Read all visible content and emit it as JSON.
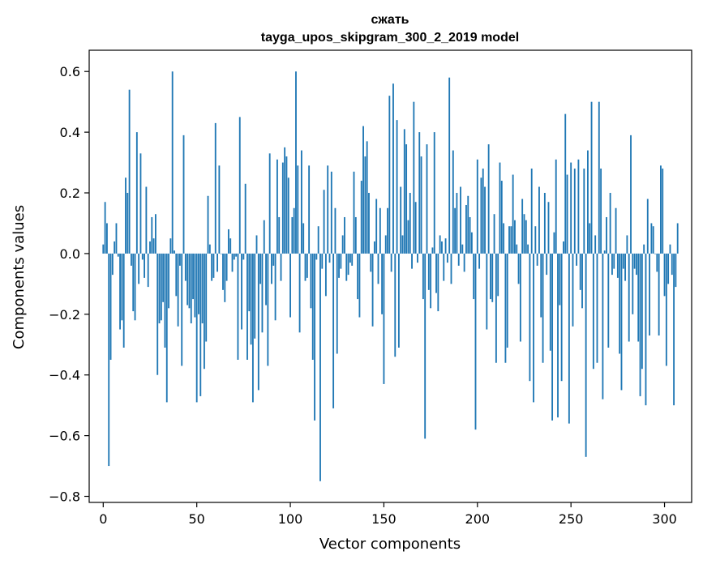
{
  "chart_data": {
    "type": "bar",
    "title": "сжать",
    "subtitle": "tayga_upos_skipgram_300_2_2019 model",
    "xlabel": "Vector components",
    "ylabel": "Components values",
    "xlim": [
      -7.5,
      314.5
    ],
    "ylim": [
      -0.82,
      0.67
    ],
    "xticks": [
      0,
      50,
      100,
      150,
      200,
      250,
      300
    ],
    "yticks": [
      -0.8,
      -0.6,
      -0.4,
      -0.2,
      0.0,
      0.2,
      0.4,
      0.6
    ],
    "ytick_labels": [
      "−0.8",
      "−0.6",
      "−0.4",
      "−0.2",
      "0.0",
      "0.2",
      "0.4",
      "0.6"
    ],
    "bar_color": "#1f77b4",
    "grid": false,
    "x_start": 0,
    "values": [
      0.03,
      0.17,
      0.1,
      -0.7,
      -0.35,
      -0.07,
      0.04,
      0.1,
      -0.01,
      -0.25,
      -0.22,
      -0.31,
      0.25,
      0.2,
      0.54,
      -0.04,
      -0.19,
      -0.22,
      0.4,
      -0.1,
      0.33,
      -0.02,
      -0.08,
      0.22,
      -0.11,
      0.04,
      0.12,
      0.05,
      0.13,
      -0.4,
      -0.23,
      -0.22,
      -0.16,
      -0.31,
      -0.49,
      -0.18,
      0.05,
      0.6,
      0.01,
      -0.14,
      -0.24,
      -0.04,
      -0.37,
      0.39,
      -0.09,
      -0.17,
      -0.18,
      -0.23,
      -0.15,
      -0.21,
      -0.49,
      -0.2,
      -0.47,
      -0.23,
      -0.38,
      -0.29,
      0.19,
      0.03,
      -0.09,
      -0.08,
      0.43,
      -0.06,
      0.29,
      0.0,
      -0.12,
      -0.16,
      -0.09,
      0.08,
      0.05,
      -0.06,
      -0.02,
      -0.01,
      -0.35,
      0.45,
      -0.25,
      -0.02,
      0.23,
      -0.35,
      -0.19,
      -0.3,
      -0.49,
      -0.28,
      0.06,
      -0.45,
      -0.1,
      -0.26,
      0.11,
      -0.17,
      -0.37,
      0.33,
      -0.1,
      -0.04,
      -0.22,
      0.31,
      0.12,
      -0.09,
      0.3,
      0.35,
      0.32,
      0.25,
      -0.21,
      0.12,
      0.15,
      0.6,
      0.29,
      -0.26,
      0.34,
      0.1,
      -0.09,
      -0.08,
      0.29,
      -0.18,
      -0.35,
      -0.55,
      -0.02,
      0.09,
      -0.75,
      -0.05,
      0.21,
      -0.14,
      0.29,
      -0.03,
      0.27,
      -0.51,
      0.15,
      -0.33,
      -0.08,
      -0.05,
      0.06,
      0.12,
      -0.09,
      -0.07,
      -0.03,
      -0.04,
      0.27,
      0.12,
      -0.15,
      -0.21,
      0.24,
      0.42,
      0.32,
      0.37,
      0.2,
      -0.06,
      -0.24,
      0.04,
      0.18,
      -0.1,
      0.15,
      -0.2,
      -0.43,
      0.06,
      0.15,
      0.52,
      -0.06,
      0.56,
      -0.34,
      0.44,
      -0.31,
      0.22,
      0.06,
      0.41,
      0.36,
      0.11,
      0.2,
      -0.05,
      0.5,
      0.17,
      -0.03,
      0.4,
      0.32,
      -0.15,
      -0.61,
      0.36,
      -0.12,
      -0.18,
      0.02,
      0.4,
      -0.13,
      -0.19,
      0.06,
      0.04,
      -0.09,
      0.05,
      -0.03,
      0.58,
      -0.1,
      0.34,
      0.15,
      0.2,
      -0.04,
      0.22,
      0.03,
      -0.06,
      0.16,
      0.19,
      0.12,
      0.07,
      -0.15,
      -0.58,
      0.31,
      -0.05,
      0.25,
      0.28,
      0.22,
      -0.25,
      0.36,
      -0.15,
      -0.16,
      0.13,
      -0.36,
      -0.14,
      0.3,
      0.24,
      0.1,
      -0.36,
      -0.31,
      0.09,
      0.09,
      0.26,
      0.11,
      0.03,
      -0.1,
      -0.29,
      0.18,
      0.13,
      0.11,
      0.03,
      -0.42,
      0.28,
      -0.49,
      0.09,
      -0.04,
      0.22,
      -0.21,
      -0.36,
      0.2,
      -0.07,
      0.17,
      -0.32,
      -0.55,
      0.07,
      0.31,
      -0.54,
      -0.17,
      -0.42,
      0.04,
      0.46,
      0.26,
      -0.56,
      0.3,
      -0.24,
      0.28,
      -0.04,
      0.31,
      -0.12,
      -0.18,
      0.28,
      -0.67,
      0.34,
      0.1,
      0.5,
      -0.38,
      0.06,
      -0.36,
      0.5,
      0.28,
      -0.48,
      0.01,
      0.12,
      -0.31,
      0.2,
      -0.07,
      -0.05,
      0.15,
      -0.08,
      -0.33,
      -0.45,
      -0.05,
      -0.09,
      0.06,
      -0.29,
      0.39,
      -0.2,
      -0.05,
      -0.07,
      -0.29,
      -0.47,
      -0.38,
      0.03,
      -0.5,
      0.18,
      -0.27,
      0.1,
      0.09,
      0.0,
      -0.06,
      -0.27,
      0.29,
      0.28,
      -0.14,
      -0.37,
      -0.1,
      0.03,
      -0.07,
      -0.5,
      -0.11,
      0.1
    ]
  }
}
